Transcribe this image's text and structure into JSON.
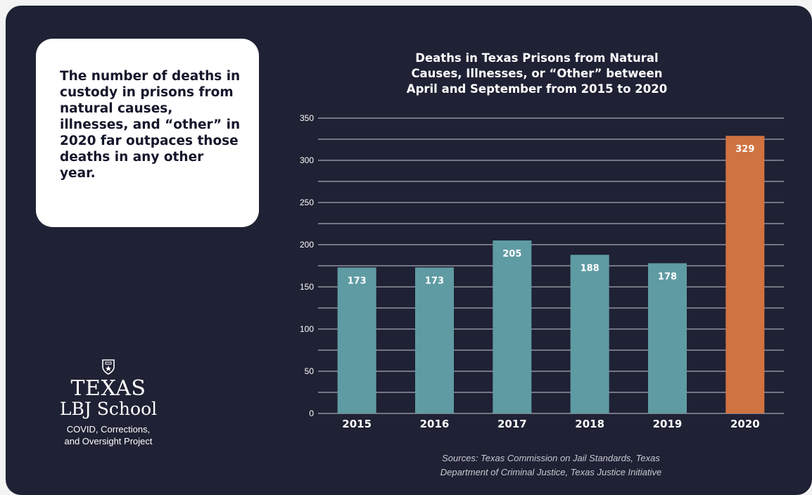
{
  "callout": {
    "text": "The number of deaths in custody in prisons from natural causes, illnesses, and “other” in 2020 far outpaces those deaths in any other year."
  },
  "logo": {
    "line1": "TEXAS",
    "line2": "LBJ School",
    "line3": "COVID, Corrections,",
    "line4": "and Oversight Project"
  },
  "sources": {
    "line1": "Sources: Texas Commission on Jail Standards, Texas",
    "line2": "Department of Criminal Justice, Texas Justice Initiative"
  },
  "colors": {
    "background": "#1f2134",
    "bar": "#5f9ba3",
    "highlight_bar": "#d07342",
    "grid": "#c9cad3",
    "text": "#ffffff"
  },
  "chart_data": {
    "type": "bar",
    "title": "Deaths in Texas Prisons from Natural Causes, Illnesses, or “Other” between April and September from 2015 to 2020",
    "title_lines": [
      "Deaths in Texas Prisons from Natural",
      "Causes, Illnesses, or “Other” between",
      "April and September from 2015 to 2020"
    ],
    "xlabel": "",
    "ylabel": "",
    "categories": [
      "2015",
      "2016",
      "2017",
      "2018",
      "2019",
      "2020"
    ],
    "values": [
      173,
      173,
      205,
      188,
      178,
      329
    ],
    "data_labels": [
      "173",
      "173",
      "205",
      "188",
      "178",
      "329"
    ],
    "highlight_category": "2020",
    "ylim": [
      0,
      350
    ],
    "yticks": [
      0,
      50,
      100,
      150,
      200,
      250,
      300,
      350
    ],
    "grid_step": 25,
    "grid": true,
    "legend": "none"
  }
}
